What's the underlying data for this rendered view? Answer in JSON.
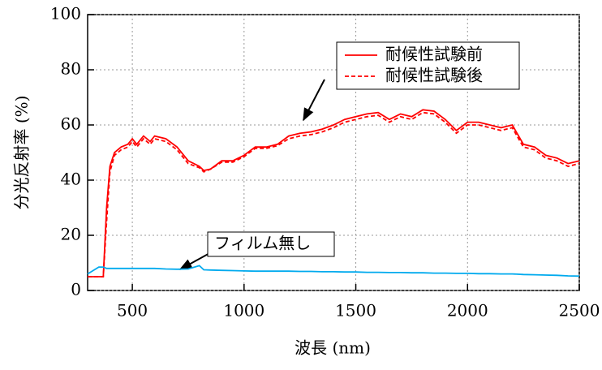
{
  "chart_data": {
    "type": "line",
    "x_label": "波長 (nm)",
    "y_label": "分光反射率 (%)",
    "x": [
      300,
      350,
      370,
      385,
      400,
      420,
      450,
      480,
      500,
      520,
      550,
      580,
      600,
      650,
      700,
      750,
      800,
      820,
      850,
      900,
      950,
      1000,
      1050,
      1100,
      1150,
      1200,
      1250,
      1300,
      1350,
      1400,
      1450,
      1500,
      1550,
      1600,
      1650,
      1700,
      1750,
      1800,
      1850,
      1900,
      1950,
      2000,
      2050,
      2100,
      2150,
      2200,
      2250,
      2300,
      2350,
      2400,
      2450,
      2500
    ],
    "series": [
      {
        "name": "耐候性試験前",
        "color": "#ff0000",
        "line_style": "solid",
        "values": [
          5,
          5,
          5,
          30,
          45,
          50,
          52,
          53,
          55,
          53,
          56,
          54,
          56,
          55,
          52,
          47,
          45,
          43.5,
          44,
          47,
          47,
          49,
          52,
          52,
          53,
          56,
          57,
          57.5,
          58.5,
          60,
          62,
          63,
          64,
          64.5,
          62,
          64,
          63,
          65.5,
          65,
          62,
          58,
          61,
          61,
          60,
          59,
          60,
          53,
          52,
          49,
          48,
          46,
          47
        ]
      },
      {
        "name": "耐候性試験後",
        "color": "#ff0000",
        "line_style": "dashed",
        "values": [
          5,
          5,
          5,
          25,
          43,
          49,
          51,
          52,
          54,
          52,
          55,
          53,
          55,
          54,
          51,
          46,
          44.5,
          43,
          44,
          46.5,
          46.5,
          48.5,
          51.5,
          51.5,
          52.5,
          55,
          56,
          56.5,
          57.5,
          59,
          61,
          62,
          63,
          63.5,
          61,
          63,
          62,
          64.5,
          64,
          61,
          57,
          60,
          60,
          59,
          58,
          59,
          52,
          51,
          48,
          47,
          45,
          46
        ]
      },
      {
        "color": "#00aaee",
        "line_style": "solid",
        "values": [
          6,
          8.5,
          8.5,
          8,
          8,
          8,
          8,
          8,
          8,
          8,
          8,
          8,
          8,
          7.8,
          7.7,
          7.8,
          9,
          7.5,
          7.4,
          7.3,
          7.2,
          7.1,
          7,
          7,
          7,
          7,
          6.9,
          6.9,
          6.8,
          6.8,
          6.7,
          6.7,
          6.6,
          6.6,
          6.5,
          6.5,
          6.4,
          6.4,
          6.3,
          6.3,
          6.2,
          6.2,
          6.1,
          6.1,
          6,
          6,
          5.8,
          5.7,
          5.6,
          5.5,
          5.3,
          5.2
        ]
      }
    ],
    "annotations": [
      {
        "text": "フィルム無し"
      }
    ],
    "xlim": [
      300,
      2500
    ],
    "xticks": [
      500,
      1000,
      1500,
      2000,
      2500
    ],
    "ylim": [
      0,
      100
    ],
    "yticks": [
      0,
      20,
      40,
      60,
      80,
      100
    ],
    "grid": true,
    "legend": "upper right"
  }
}
